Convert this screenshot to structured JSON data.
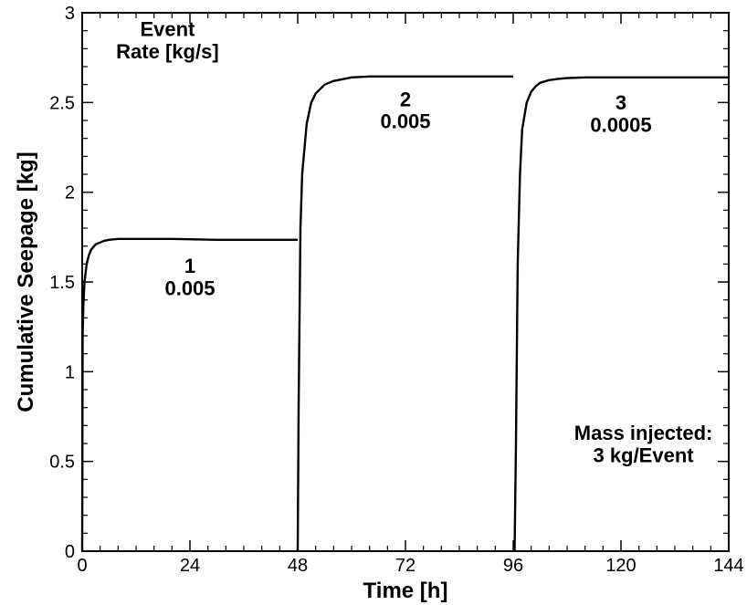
{
  "chart_data": {
    "type": "line",
    "title": "",
    "xlabel": "Time [h]",
    "ylabel": "Cumulative Seepage [kg]",
    "xlim": [
      0,
      144
    ],
    "ylim": [
      0,
      3
    ],
    "x_ticks": [
      0,
      24,
      48,
      72,
      96,
      120,
      144
    ],
    "x_tick_labels": [
      "0",
      "24",
      "48",
      "72",
      "96",
      "120",
      "144"
    ],
    "y_ticks": [
      0,
      0.5,
      1,
      1.5,
      2,
      2.5,
      3
    ],
    "y_tick_labels": [
      "0",
      "0.5",
      "1",
      "1.5",
      "2",
      "2.5",
      "3"
    ],
    "grid": false,
    "series": [
      {
        "color": "#000000",
        "segments": [
          {
            "x": [
              0,
              0.1,
              0.25,
              0.5,
              1,
              1.5,
              2,
              3,
              4,
              5,
              6,
              8,
              10,
              14,
              20,
              30,
              40,
              48
            ],
            "y": [
              0,
              1.2,
              1.36,
              1.5,
              1.6,
              1.65,
              1.68,
              1.71,
              1.72,
              1.73,
              1.735,
              1.74,
              1.74,
              1.74,
              1.74,
              1.735,
              1.735,
              1.735
            ]
          },
          {
            "x": [
              48,
              48.2,
              48.6,
              49,
              50,
              51,
              52,
              54,
              56,
              58,
              60,
              64,
              70,
              80,
              90,
              96
            ],
            "y": [
              0,
              0.8,
              1.8,
              2.1,
              2.38,
              2.5,
              2.55,
              2.6,
              2.62,
              2.63,
              2.64,
              2.645,
              2.645,
              2.645,
              2.645,
              2.645
            ]
          },
          {
            "x": [
              96.3,
              96.6,
              97,
              97.5,
              98,
              99,
              100,
              101,
              102,
              104,
              106,
              108,
              112,
              120,
              130,
              144
            ],
            "y": [
              0,
              0.6,
              1.6,
              2.1,
              2.35,
              2.5,
              2.56,
              2.59,
              2.61,
              2.625,
              2.632,
              2.636,
              2.64,
              2.64,
              2.64,
              2.64
            ]
          }
        ]
      }
    ],
    "annotations": [
      {
        "lines": [
          "Event",
          "Rate [kg/s]"
        ],
        "x": 19,
        "y": 2.87
      },
      {
        "lines": [
          "1",
          "0.005"
        ],
        "x": 24,
        "y": 1.55
      },
      {
        "lines": [
          "2",
          "0.005"
        ],
        "x": 72,
        "y": 2.48
      },
      {
        "lines": [
          "3",
          "0.0005"
        ],
        "x": 120,
        "y": 2.46
      },
      {
        "lines": [
          "Mass injected:",
          "3 kg/Event"
        ],
        "x": 125,
        "y": 0.62
      }
    ]
  }
}
